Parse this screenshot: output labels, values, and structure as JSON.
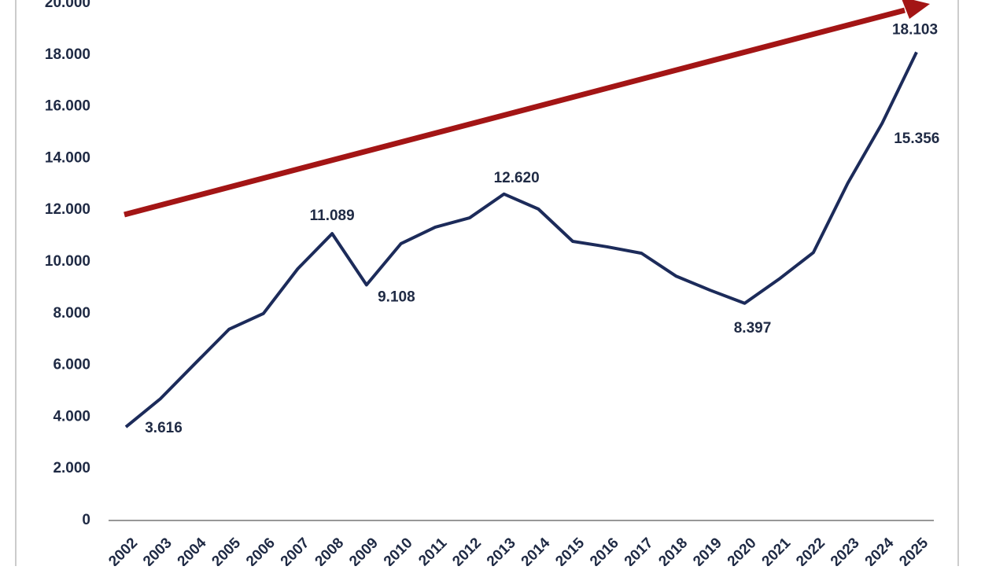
{
  "chart_data": {
    "type": "line",
    "categories": [
      "2002",
      "2003",
      "2004",
      "2005",
      "2006",
      "2007",
      "2008",
      "2009",
      "2010",
      "2011",
      "2012",
      "2013",
      "2014",
      "2015",
      "2016",
      "2017",
      "2018",
      "2019",
      "2020",
      "2021",
      "2022",
      "2023",
      "2024",
      "2025"
    ],
    "series": [
      {
        "color": "#1c2b5a",
        "values": [
          3616,
          4700,
          6050,
          7390,
          8000,
          9730,
          11089,
          9108,
          10700,
          11340,
          11700,
          12620,
          12040,
          10790,
          10580,
          10330,
          9450,
          8900,
          8397,
          9330,
          10360,
          13040,
          15356,
          18103
        ],
        "value_labels": [
          "3.616",
          null,
          null,
          null,
          null,
          null,
          "11.089",
          "9.108",
          null,
          null,
          null,
          "12.620",
          null,
          null,
          null,
          null,
          null,
          null,
          "8.397",
          null,
          null,
          null,
          "15.356",
          "18.103"
        ]
      }
    ],
    "ylim": [
      0,
      20000
    ],
    "yticks": [
      0,
      {
        "value": 2000,
        "label": "2.000"
      },
      {
        "value": 4000,
        "label": "4.000"
      },
      {
        "value": 6000,
        "label": "6.000"
      },
      {
        "value": 8000,
        "label": "8.000"
      },
      {
        "value": 10000,
        "label": "10.000"
      },
      {
        "value": 12000,
        "label": "12.000"
      },
      {
        "value": 14000,
        "label": "14.000"
      },
      {
        "value": 16000,
        "label": "16.000"
      },
      {
        "value": 18000,
        "label": "18.000"
      },
      {
        "value": 20000,
        "label": "20.000"
      }
    ],
    "trend_arrow_color": "#a31515",
    "grid": false
  }
}
